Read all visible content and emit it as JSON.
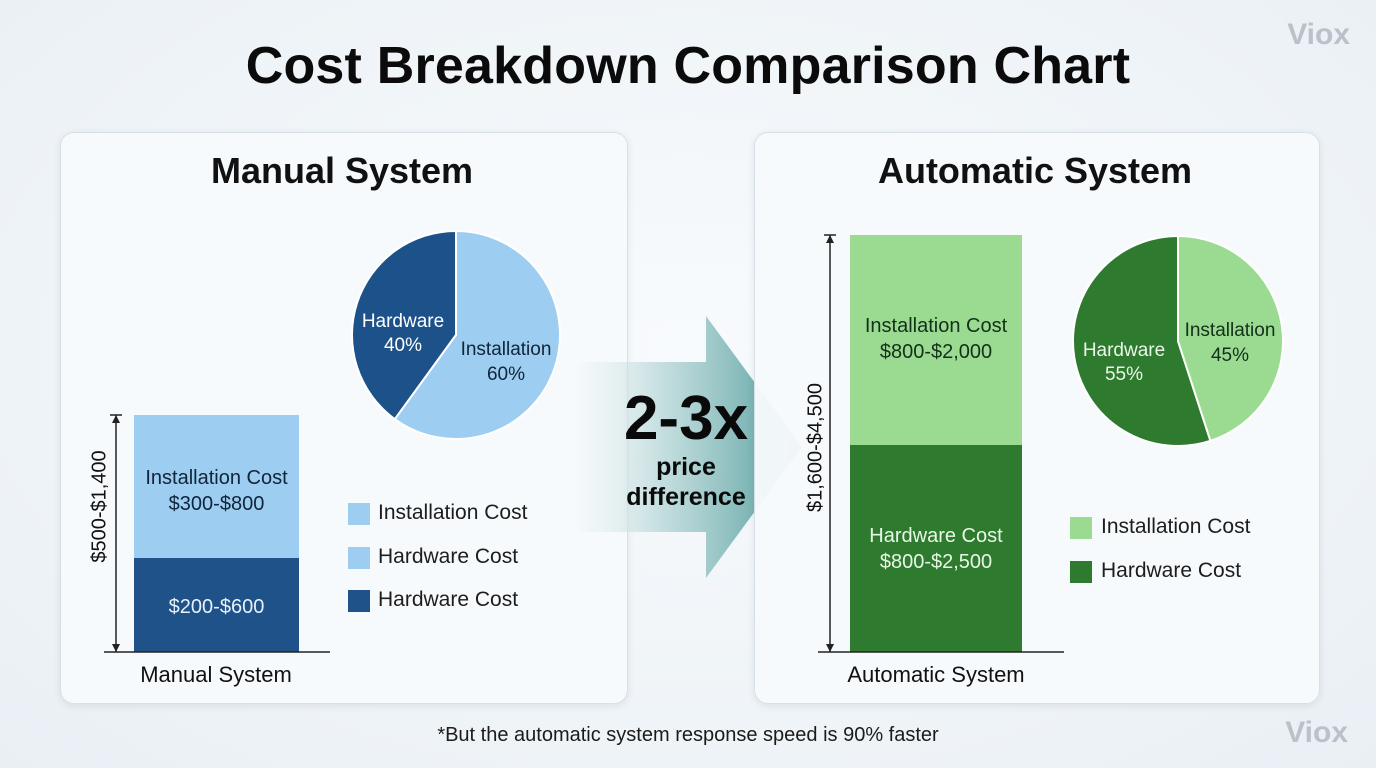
{
  "title": "Cost Breakdown Comparison Chart",
  "watermark": "Viox",
  "footnote": "*But the automatic system response speed is 90% faster",
  "center_arrow": {
    "big": "2-3x",
    "line1": "price",
    "line2": "difference"
  },
  "colors": {
    "manual_install": "#9dcdf0",
    "manual_hardware": "#1e5289",
    "manual_pie_hardware": "#1d5189",
    "auto_install": "#9bdb91",
    "auto_hardware": "#2e7a2e"
  },
  "chart_data": [
    {
      "type": "bar",
      "name": "Manual System",
      "panel_title": "Manual System",
      "xlabel": "Manual System",
      "ylabel": "$500-$1,400",
      "stack": [
        {
          "label": "Installation Cost",
          "range_text": "$300-$800",
          "min": 300,
          "max": 800
        },
        {
          "label": "",
          "range_text": "$200-$600",
          "min": 200,
          "max": 600
        }
      ],
      "legend": [
        "Installation Cost",
        "Hardware Cost",
        "Hardware Cost"
      ]
    },
    {
      "type": "pie",
      "name": "Manual System Share",
      "slices": [
        {
          "label": "Hardware",
          "pct_text": "40%",
          "value": 40
        },
        {
          "label": "Installation",
          "pct_text": "60%",
          "value": 60
        }
      ]
    },
    {
      "type": "bar",
      "name": "Automatic System",
      "panel_title": "Automatic System",
      "xlabel": "Automatic System",
      "ylabel": "$1,600-$4,500",
      "stack": [
        {
          "label": "Installation Cost",
          "range_text": "$800-$2,000",
          "min": 800,
          "max": 2000
        },
        {
          "label": "Hardware Cost",
          "range_text": "$800-$2,500",
          "min": 800,
          "max": 2500
        }
      ],
      "legend": [
        "Installation Cost",
        "Hardware Cost"
      ]
    },
    {
      "type": "pie",
      "name": "Automatic System Share",
      "slices": [
        {
          "label": "Hardware",
          "pct_text": "55%",
          "value": 55
        },
        {
          "label": "Installation",
          "pct_text": "45%",
          "value": 45
        }
      ]
    }
  ]
}
